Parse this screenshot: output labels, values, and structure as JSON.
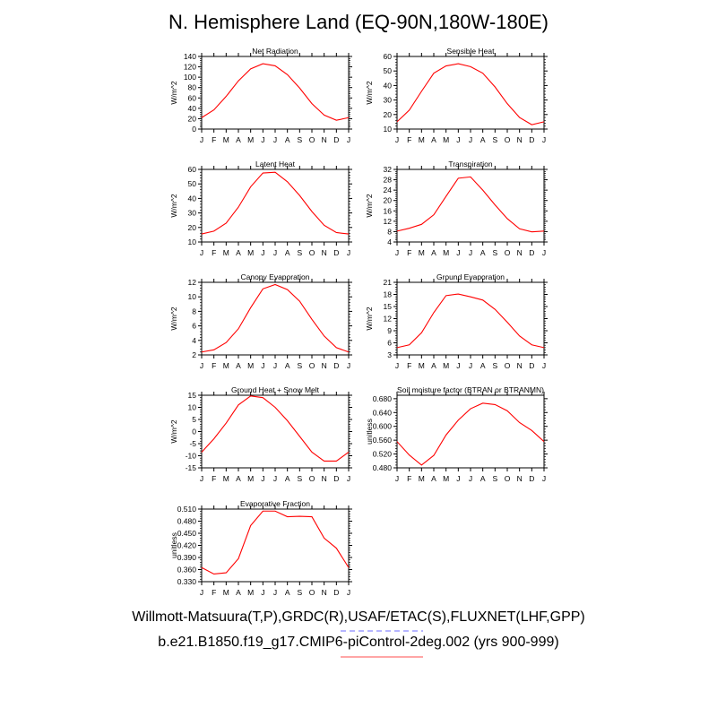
{
  "title": "N. Hemisphere Land (EQ-90N,180W-180E)",
  "footer": {
    "obs_line": "Willmott-Matsuura(T,P),GRDC(R),USAF/ETAC(S),FLUXNET(LHF,GPP)",
    "model_line": "b.e21.B1850.f19_g17.CMIP6-piControl-2deg.002 (yrs 900-999)",
    "obs_legend_color": "#6b6bff",
    "model_legend_color": "#ff4d4d"
  },
  "chart_data": [
    {
      "type": "line",
      "title": "Net Radiation",
      "ylabel": "W/m^2",
      "categories": [
        "J",
        "F",
        "M",
        "A",
        "M",
        "J",
        "J",
        "A",
        "S",
        "O",
        "N",
        "D",
        "J"
      ],
      "ylim": [
        0,
        140
      ],
      "yticks": [
        0,
        20,
        40,
        60,
        80,
        100,
        120,
        140
      ],
      "ytick_labels": [
        "0",
        "20",
        "40",
        "60",
        "80",
        "100",
        "120",
        "140"
      ],
      "color": "#ff0000",
      "values": [
        22,
        37,
        63,
        93,
        116,
        126,
        122,
        105,
        79,
        49,
        27,
        17,
        22
      ]
    },
    {
      "type": "line",
      "title": "Sensible Heat",
      "ylabel": "W/m^2",
      "categories": [
        "J",
        "F",
        "M",
        "A",
        "M",
        "J",
        "J",
        "A",
        "S",
        "O",
        "N",
        "D",
        "J"
      ],
      "ylim": [
        10,
        60
      ],
      "yticks": [
        10,
        20,
        30,
        40,
        50,
        60
      ],
      "ytick_labels": [
        "10",
        "20",
        "30",
        "40",
        "50",
        "60"
      ],
      "color": "#ff0000",
      "values": [
        15,
        23,
        36,
        48.5,
        53.5,
        55,
        53,
        48.5,
        39,
        27.5,
        18,
        13,
        15
      ]
    },
    {
      "type": "line",
      "title": "Latent Heat",
      "ylabel": "W/m^2",
      "categories": [
        "J",
        "F",
        "M",
        "A",
        "M",
        "J",
        "J",
        "A",
        "S",
        "O",
        "N",
        "D",
        "J"
      ],
      "ylim": [
        10,
        60
      ],
      "yticks": [
        10,
        20,
        30,
        40,
        50,
        60
      ],
      "ytick_labels": [
        "10",
        "20",
        "30",
        "40",
        "50",
        "60"
      ],
      "color": "#ff0000",
      "values": [
        15.5,
        17.5,
        23,
        34,
        48,
        57.5,
        58,
        51.5,
        42,
        31,
        21.5,
        16.5,
        15.5
      ]
    },
    {
      "type": "line",
      "title": "Transpiration",
      "ylabel": "W/m^2",
      "categories": [
        "J",
        "F",
        "M",
        "A",
        "M",
        "J",
        "J",
        "A",
        "S",
        "O",
        "N",
        "D",
        "J"
      ],
      "ylim": [
        4,
        32
      ],
      "yticks": [
        4,
        8,
        12,
        16,
        20,
        24,
        28,
        32
      ],
      "ytick_labels": [
        "4",
        "8",
        "12",
        "16",
        "20",
        "24",
        "28",
        "32"
      ],
      "color": "#ff0000",
      "values": [
        8.2,
        9.3,
        10.8,
        14.5,
        21.6,
        28.6,
        29.1,
        24,
        18.3,
        13,
        9.1,
        7.9,
        8.2
      ]
    },
    {
      "type": "line",
      "title": "Canopy Evaporation",
      "ylabel": "W/m^2",
      "categories": [
        "J",
        "F",
        "M",
        "A",
        "M",
        "J",
        "J",
        "A",
        "S",
        "O",
        "N",
        "D",
        "J"
      ],
      "ylim": [
        2,
        12
      ],
      "yticks": [
        2,
        4,
        6,
        8,
        10,
        12
      ],
      "ytick_labels": [
        "2",
        "4",
        "6",
        "8",
        "10",
        "12"
      ],
      "color": "#ff0000",
      "values": [
        2.4,
        2.7,
        3.7,
        5.6,
        8.5,
        11.1,
        11.7,
        11.0,
        9.4,
        6.9,
        4.6,
        3.0,
        2.4
      ]
    },
    {
      "type": "line",
      "title": "Ground Evaporation",
      "ylabel": "W/m^2",
      "categories": [
        "J",
        "F",
        "M",
        "A",
        "M",
        "J",
        "J",
        "A",
        "S",
        "O",
        "N",
        "D",
        "J"
      ],
      "ylim": [
        3,
        21
      ],
      "yticks": [
        3,
        6,
        9,
        12,
        15,
        18,
        21
      ],
      "ytick_labels": [
        "3",
        "6",
        "9",
        "12",
        "15",
        "18",
        "21"
      ],
      "color": "#ff0000",
      "values": [
        4.8,
        5.5,
        8.5,
        13.5,
        17.7,
        18.1,
        17.4,
        16.6,
        14.3,
        11.1,
        7.7,
        5.5,
        4.8
      ]
    },
    {
      "type": "line",
      "title": "Ground Heat + Snow Melt",
      "ylabel": "W/m^2",
      "categories": [
        "J",
        "F",
        "M",
        "A",
        "M",
        "J",
        "J",
        "A",
        "S",
        "O",
        "N",
        "D",
        "J"
      ],
      "ylim": [
        -15,
        15
      ],
      "yticks": [
        -15,
        -10,
        -5,
        0,
        5,
        10,
        15
      ],
      "ytick_labels": [
        "-15",
        "-10",
        "-5",
        "0",
        "5",
        "10",
        "15"
      ],
      "color": "#ff0000",
      "values": [
        -8.5,
        -3,
        3.5,
        11,
        14.7,
        14,
        10,
        4.5,
        -2,
        -8.5,
        -12.2,
        -12.2,
        -8.5
      ]
    },
    {
      "type": "line",
      "title": "Soil moisture factor (BTRAN or BTRANMN)",
      "ylabel": "unitless",
      "categories": [
        "J",
        "F",
        "M",
        "A",
        "M",
        "J",
        "J",
        "A",
        "S",
        "O",
        "N",
        "D",
        "J"
      ],
      "ylim": [
        0.48,
        0.69
      ],
      "yticks": [
        0.48,
        0.52,
        0.56,
        0.6,
        0.64,
        0.68
      ],
      "ytick_labels": [
        "0.480",
        "0.520",
        "0.560",
        "0.600",
        "0.640",
        "0.680"
      ],
      "color": "#ff0000",
      "values": [
        0.556,
        0.517,
        0.488,
        0.516,
        0.575,
        0.618,
        0.651,
        0.667,
        0.663,
        0.645,
        0.611,
        0.588,
        0.556
      ]
    },
    {
      "type": "line",
      "title": "Evaporative Fraction",
      "ylabel": "unitless",
      "categories": [
        "J",
        "F",
        "M",
        "A",
        "M",
        "J",
        "J",
        "A",
        "S",
        "O",
        "N",
        "D",
        "J"
      ],
      "ylim": [
        0.33,
        0.51
      ],
      "yticks": [
        0.33,
        0.36,
        0.39,
        0.42,
        0.45,
        0.48,
        0.51
      ],
      "ytick_labels": [
        "0.330",
        "0.360",
        "0.390",
        "0.420",
        "0.450",
        "0.480",
        "0.510"
      ],
      "color": "#ff0000",
      "values": [
        0.365,
        0.349,
        0.352,
        0.387,
        0.469,
        0.505,
        0.505,
        0.491,
        0.492,
        0.491,
        0.438,
        0.413,
        0.365
      ]
    }
  ]
}
